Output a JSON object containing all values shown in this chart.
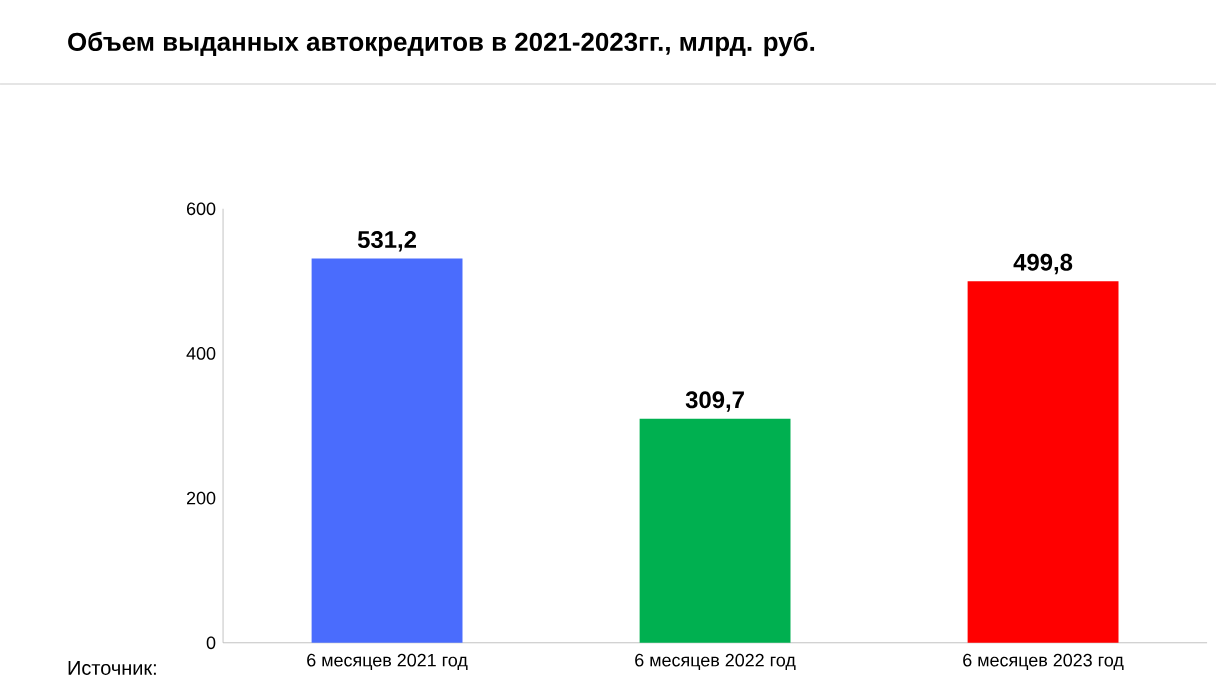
{
  "chart_data": {
    "type": "bar",
    "title": "Объем выданных автокредитов в 2021-2023гг., млрд. руб.",
    "categories": [
      "6 месяцев 2021 год",
      "6 месяцев 2022 год",
      "6 месяцев 2023 год"
    ],
    "values": [
      531.2,
      309.7,
      499.8
    ],
    "value_labels": [
      "531,2",
      "309,7",
      "499,8"
    ],
    "colors": [
      "#4a6cfd",
      "#00b050",
      "#ff0000"
    ],
    "ylim": [
      0,
      600
    ],
    "yticks": [
      0,
      200,
      400,
      600
    ],
    "annotations": [
      "Источник:"
    ]
  }
}
